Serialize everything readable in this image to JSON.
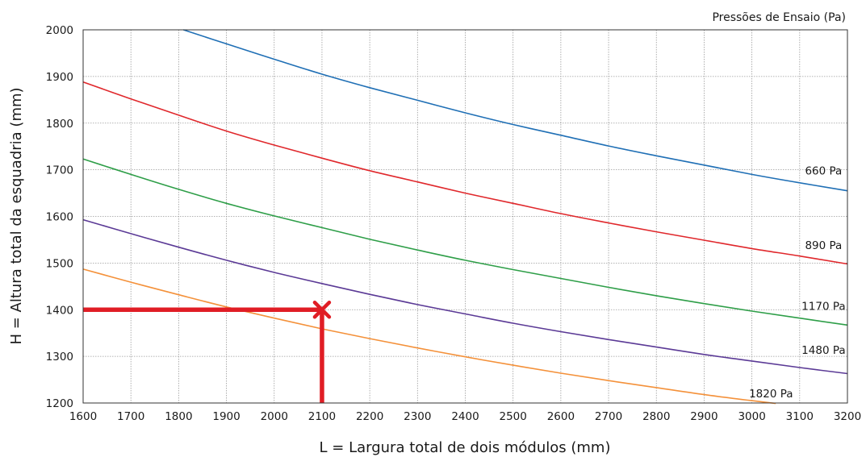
{
  "chart_data": {
    "type": "line",
    "legend_title": "Pressões de Ensaio  (Pa)",
    "xlabel": "L = Largura total de dois módulos (mm)",
    "ylabel": "H = Altura total da esquadria (mm)",
    "xlim": [
      1600,
      3200
    ],
    "ylim": [
      1200,
      2000
    ],
    "xticks": [
      "1600",
      "1700",
      "1800",
      "1900",
      "2000",
      "2100",
      "2200",
      "2300",
      "2400",
      "2500",
      "2600",
      "2700",
      "2800",
      "2900",
      "3000",
      "3100",
      "3200"
    ],
    "yticks": [
      "1200",
      "1300",
      "1400",
      "1500",
      "1600",
      "1700",
      "1800",
      "1900",
      "2000"
    ],
    "grid": true,
    "series": [
      {
        "name": "660 Pa",
        "color": "#1f6fb5",
        "label_at": [
          3150,
          1690
        ],
        "x": [
          1810,
          1900,
          2000,
          2100,
          2200,
          2300,
          2400,
          2500,
          2600,
          2700,
          2800,
          2900,
          3000,
          3100,
          3200
        ],
        "y": [
          2000,
          1970,
          1937,
          1905,
          1876,
          1849,
          1822,
          1797,
          1774,
          1751,
          1730,
          1710,
          1690,
          1672,
          1655
        ]
      },
      {
        "name": "890 Pa",
        "color": "#e0282c",
        "label_at": [
          3150,
          1530
        ],
        "x": [
          1600,
          1700,
          1800,
          1900,
          2000,
          2100,
          2200,
          2300,
          2400,
          2500,
          2600,
          2700,
          2800,
          2900,
          3000,
          3100,
          3200
        ],
        "y": [
          1888,
          1852,
          1817,
          1783,
          1753,
          1725,
          1698,
          1674,
          1650,
          1628,
          1606,
          1586,
          1567,
          1549,
          1531,
          1515,
          1498
        ]
      },
      {
        "name": "1170 Pa",
        "color": "#2e9e48",
        "label_at": [
          3150,
          1400
        ],
        "x": [
          1600,
          1700,
          1800,
          1900,
          2000,
          2100,
          2200,
          2300,
          2400,
          2500,
          2600,
          2700,
          2800,
          2900,
          3000,
          3100,
          3200
        ],
        "y": [
          1723,
          1690,
          1658,
          1628,
          1601,
          1576,
          1551,
          1528,
          1506,
          1486,
          1467,
          1448,
          1430,
          1413,
          1397,
          1382,
          1367
        ]
      },
      {
        "name": "1480 Pa",
        "color": "#5b3a96",
        "label_at": [
          3150,
          1305
        ],
        "x": [
          1600,
          1700,
          1800,
          1900,
          2000,
          2100,
          2200,
          2300,
          2400,
          2500,
          2600,
          2700,
          2800,
          2900,
          3000,
          3100,
          3200
        ],
        "y": [
          1593,
          1563,
          1534,
          1506,
          1480,
          1456,
          1433,
          1411,
          1391,
          1371,
          1353,
          1336,
          1320,
          1304,
          1290,
          1276,
          1263
        ]
      },
      {
        "name": "1820 Pa",
        "color": "#f4913a",
        "label_at": [
          3040,
          1212
        ],
        "x": [
          1600,
          1700,
          1800,
          1900,
          2000,
          2100,
          2200,
          2300,
          2400,
          2500,
          2600,
          2700,
          2800,
          2900,
          3000,
          3050
        ],
        "y": [
          1487,
          1459,
          1432,
          1406,
          1382,
          1359,
          1338,
          1318,
          1299,
          1281,
          1264,
          1248,
          1233,
          1218,
          1205,
          1199
        ]
      }
    ],
    "marker": {
      "x": 2100,
      "y": 1400,
      "color": "#e01d25"
    }
  }
}
